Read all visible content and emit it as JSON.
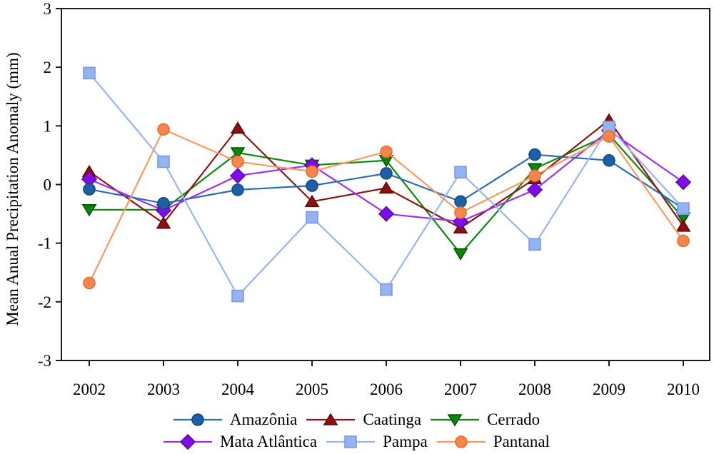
{
  "figure_background": "#ffffff",
  "axis_color": "#1a1a1a",
  "text_color": "#000000",
  "chart_data": {
    "type": "line",
    "title": "",
    "xlabel": "",
    "ylabel": "Mean Anual Precipitation Anomaly (mm)",
    "x": [
      2002,
      2003,
      2004,
      2005,
      2006,
      2007,
      2008,
      2009,
      2010
    ],
    "ylim": [
      -3,
      3
    ],
    "yticks": [
      3,
      2,
      1,
      0,
      -1,
      -2,
      -3
    ],
    "grid": false,
    "legend_position": "bottom",
    "legend_rows": [
      [
        "Amazônia",
        "Caatinga",
        "Cerrado"
      ],
      [
        "Mata Atlântica",
        "Pampa",
        "Pantanal"
      ]
    ],
    "series": [
      {
        "name": "Amazônia",
        "marker": "circle",
        "line_color": "#2B6CB8",
        "fill_color": "#1D5FA6",
        "stroke_color": "#164A80",
        "values": [
          -0.08,
          -0.32,
          -0.09,
          -0.02,
          0.19,
          -0.29,
          0.51,
          0.41,
          -0.41
        ]
      },
      {
        "name": "Caatinga",
        "marker": "triangle-up",
        "line_color": "#8F1511",
        "fill_color": "#8C1010",
        "stroke_color": "#630707",
        "values": [
          0.22,
          -0.66,
          0.96,
          -0.29,
          -0.06,
          -0.74,
          0.1,
          1.1,
          -0.71
        ]
      },
      {
        "name": "Cerrado",
        "marker": "triangle-down",
        "line_color": "#0C8A0C",
        "fill_color": "#0A870A",
        "stroke_color": "#035403",
        "values": [
          -0.43,
          -0.43,
          0.54,
          0.33,
          0.41,
          -1.18,
          0.27,
          0.85,
          -0.57
        ]
      },
      {
        "name": "Mata Atlântica",
        "marker": "diamond",
        "line_color": "#A030F0",
        "fill_color": "#7F0DE8",
        "stroke_color": "#5A0AAE",
        "values": [
          0.09,
          -0.44,
          0.15,
          0.33,
          -0.5,
          -0.63,
          -0.09,
          0.92,
          0.04
        ]
      },
      {
        "name": "Pampa",
        "marker": "square",
        "line_color": "#98B5F2",
        "fill_color": "#95B3F3",
        "stroke_color": "#7B9BE0",
        "values": [
          1.9,
          0.39,
          -1.9,
          -0.56,
          -1.79,
          0.21,
          -1.02,
          0.98,
          -0.41
        ]
      },
      {
        "name": "Pantanal",
        "marker": "circle",
        "line_color": "#FA9A60",
        "fill_color": "#F9854A",
        "stroke_color": "#E0702F",
        "values": [
          -1.68,
          0.94,
          0.39,
          0.22,
          0.56,
          -0.48,
          0.15,
          0.82,
          -0.96
        ]
      }
    ]
  }
}
